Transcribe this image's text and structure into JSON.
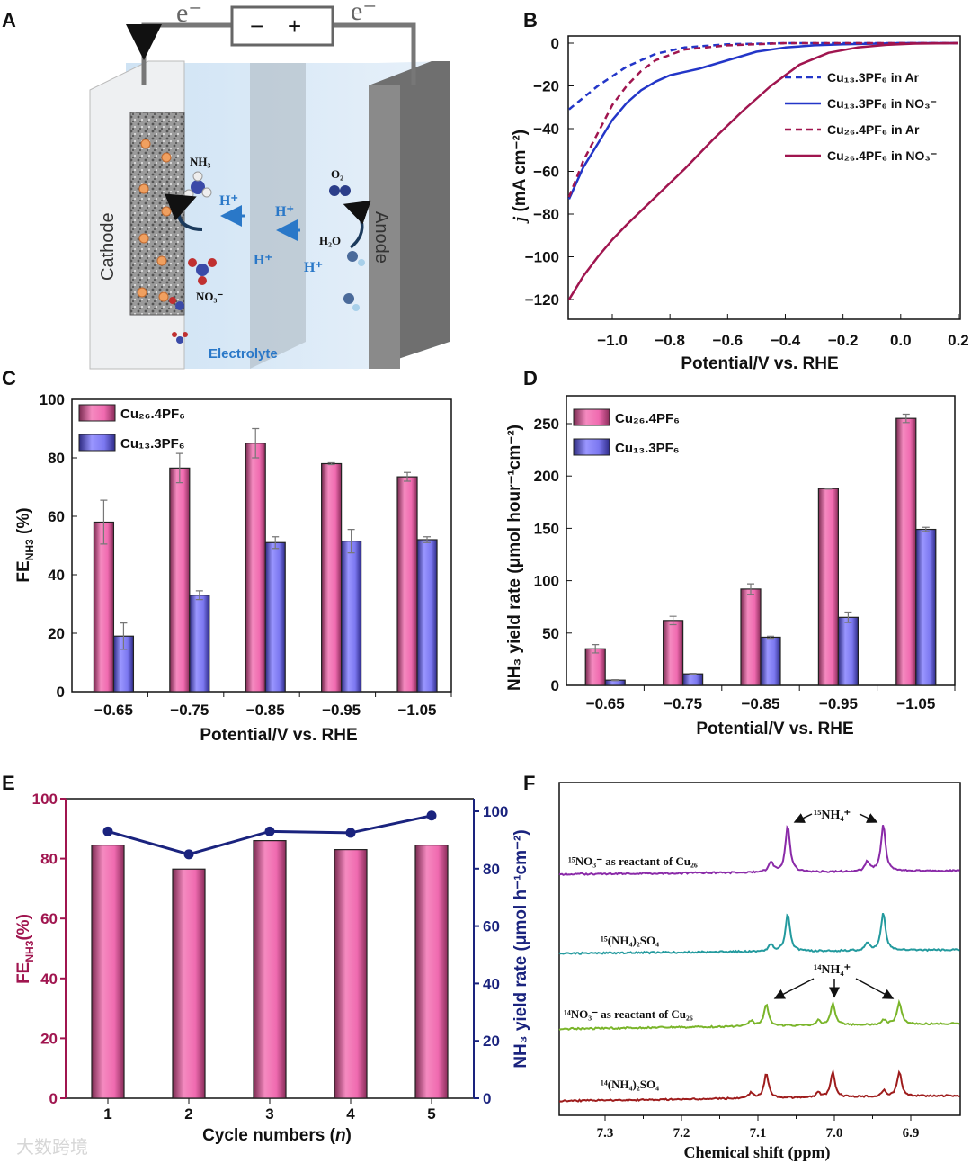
{
  "panels": {
    "A": "A",
    "B": "B",
    "C": "C",
    "D": "D",
    "E": "E",
    "F": "F"
  },
  "watermark": "大数跨境",
  "panel_a": {
    "electron_left": "e⁻",
    "electron_right": "e⁻",
    "battery_minus": "−",
    "battery_plus": "+",
    "cathode": "Cathode",
    "anode": "Anode",
    "nh3": "NH₃",
    "h_plus": "H⁺",
    "o2": "O₂",
    "h2o": "H₂O",
    "no3": "NO₃⁻",
    "electrolyte": "Electrolyte"
  },
  "chart_data": [
    {
      "panel": "B",
      "type": "line",
      "xlabel": "Potential/V vs. RHE",
      "ylabel_main": "j",
      "ylabel_rest": " (mA cm⁻²)",
      "xlim": [
        -1.15,
        0.2
      ],
      "ylim": [
        -129,
        3
      ],
      "xticks": [
        "−1.0",
        "−0.8",
        "−0.6",
        "−0.4",
        "−0.2",
        "0.0",
        "0.2"
      ],
      "xtick_values": [
        -1.0,
        -0.8,
        -0.6,
        -0.4,
        -0.2,
        0.0,
        0.2
      ],
      "yticks": [
        "0",
        "−20",
        "−40",
        "−60",
        "−80",
        "−100",
        "−120"
      ],
      "ytick_values": [
        0,
        -20,
        -40,
        -60,
        -80,
        -100,
        -120
      ],
      "legend_position": "top-right",
      "series": [
        {
          "name": "Cu₁₃.3PF₆ in Ar",
          "color": "#2336c8",
          "dash": true,
          "x": [
            -1.15,
            -1.05,
            -0.95,
            -0.85,
            -0.75,
            -0.6,
            -0.4,
            0.2
          ],
          "y": [
            -31,
            -20,
            -11,
            -5,
            -2,
            -0.5,
            0,
            0
          ]
        },
        {
          "name": "Cu₁₃.3PF₆ in NO₃⁻",
          "color": "#2336c8",
          "dash": false,
          "x": [
            -1.15,
            -1.1,
            -1.05,
            -1.0,
            -0.95,
            -0.9,
            -0.85,
            -0.8,
            -0.7,
            -0.6,
            -0.5,
            -0.4,
            -0.3,
            -0.2,
            0.0,
            0.2
          ],
          "y": [
            -73,
            -58,
            -47,
            -36,
            -28,
            -22,
            -18,
            -15,
            -12,
            -8,
            -4,
            -2,
            -1,
            -0.5,
            0,
            0
          ]
        },
        {
          "name": "Cu₂₆.4PF₆ in Ar",
          "color": "#a0154f",
          "dash": true,
          "x": [
            -1.15,
            -1.1,
            -1.05,
            -1.0,
            -0.95,
            -0.9,
            -0.85,
            -0.75,
            -0.6,
            -0.4,
            0.2
          ],
          "y": [
            -72,
            -55,
            -42,
            -29,
            -20,
            -13,
            -8,
            -3,
            -1,
            0,
            0
          ]
        },
        {
          "name": "Cu₂₆.4PF₆ in NO₃⁻",
          "color": "#a0154f",
          "dash": false,
          "x": [
            -1.15,
            -1.1,
            -1.05,
            -1.0,
            -0.95,
            -0.85,
            -0.75,
            -0.65,
            -0.55,
            -0.45,
            -0.35,
            -0.25,
            -0.15,
            -0.05,
            0.05,
            0.2
          ],
          "y": [
            -120,
            -109,
            -100,
            -92,
            -85,
            -72,
            -59,
            -45,
            -32,
            -20,
            -10,
            -4.5,
            -2,
            -0.8,
            -0.2,
            0
          ]
        }
      ]
    },
    {
      "panel": "C",
      "type": "bar",
      "xlabel": "Potential/V vs. RHE",
      "ylabel_main": "FE",
      "ylabel_sub": "NH3",
      "ylabel_rest": " (%)",
      "categories": [
        "−0.65",
        "−0.75",
        "−0.85",
        "−0.95",
        "−1.05"
      ],
      "ylim": [
        0,
        100
      ],
      "yticks": [
        0,
        20,
        40,
        60,
        80,
        100
      ],
      "legend_position": "top-left",
      "series": [
        {
          "name": "Cu₂₆.4PF₆",
          "color": "#f06bb0",
          "values": [
            58,
            76.5,
            85,
            78,
            73.5
          ],
          "errors": [
            7.5,
            5,
            5,
            0.3,
            1.5
          ]
        },
        {
          "name": "Cu₁₃.3PF₆",
          "color": "#7c78f0",
          "values": [
            19,
            33,
            51,
            51.5,
            52
          ],
          "errors": [
            4.5,
            1.5,
            2,
            4,
            1
          ]
        }
      ]
    },
    {
      "panel": "D",
      "type": "bar",
      "xlabel": "Potential/V vs. RHE",
      "ylabel": "NH₃ yield rate (μmol hour⁻¹cm⁻²)",
      "categories": [
        "−0.65",
        "−0.75",
        "−0.85",
        "−0.95",
        "−1.05"
      ],
      "ylim": [
        0,
        275
      ],
      "yticks": [
        0,
        50,
        100,
        150,
        200,
        250
      ],
      "legend_position": "top-left",
      "series": [
        {
          "name": "Cu₂₆.4PF₆",
          "color": "#f06bb0",
          "values": [
            35,
            62,
            92,
            188,
            255
          ],
          "errors": [
            4,
            4,
            5,
            0.5,
            4
          ]
        },
        {
          "name": "Cu₁₃.3PF₆",
          "color": "#7c78f0",
          "values": [
            5,
            11,
            46,
            65,
            149
          ],
          "errors": [
            0.5,
            0.5,
            1,
            5,
            2
          ]
        }
      ]
    },
    {
      "panel": "E",
      "type": "bar",
      "xlabel_main": "Cycle numbers (",
      "xlabel_italic": "n",
      "xlabel_end": ")",
      "ylabel_main": "FE",
      "ylabel_sub": "NH3",
      "ylabel_rest": "(%)",
      "ylabel_right": "NH₃ yield rate (μmol h⁻¹cm⁻²)",
      "categories": [
        "1",
        "2",
        "3",
        "4",
        "5"
      ],
      "ylim": [
        0,
        100
      ],
      "ylim_right": [
        0,
        105
      ],
      "yticks": [
        0,
        20,
        40,
        60,
        80,
        100
      ],
      "yticks_right": [
        0,
        20,
        40,
        60,
        80,
        100
      ],
      "left_color": "#a0154f",
      "right_color": "#1a237e",
      "bars": {
        "name": "FE NH3",
        "color": "#f06bb0",
        "values": [
          84.5,
          76.5,
          86,
          83,
          84.5
        ]
      },
      "line": {
        "name": "NH3 yield rate",
        "color": "#1a237e",
        "values": [
          93,
          85,
          93,
          92.5,
          98.5
        ]
      }
    },
    {
      "panel": "F",
      "type": "line",
      "xlabel": "Chemical shift (ppm)",
      "xlim": [
        7.36,
        6.835
      ],
      "xticks": [
        "7.3",
        "7.2",
        "7.1",
        "7.0",
        "6.9"
      ],
      "xtick_values": [
        7.3,
        7.2,
        7.1,
        7.0,
        6.9
      ],
      "annotations": {
        "n15": "¹⁵NH₄⁺",
        "n14": "¹⁴NH₄⁺"
      },
      "series": [
        {
          "name": "¹⁵NO₃⁻ as reactant of Cu₂₆",
          "color": "#8a2aa8",
          "peaks_ppm": [
            7.083,
            7.061,
            6.957,
            6.936
          ],
          "peak_heights": [
            0.22,
            1.0,
            0.2,
            1.0
          ]
        },
        {
          "name": "¹⁵(NH₄)₂SO₄",
          "color": "#239a9e",
          "peaks_ppm": [
            7.083,
            7.061,
            6.957,
            6.936
          ],
          "peak_heights": [
            0.15,
            0.85,
            0.15,
            0.85
          ]
        },
        {
          "name": "¹⁴NO₃⁻ as reactant of Cu₂₆",
          "color": "#7ab52a",
          "peaks_ppm": [
            7.109,
            7.089,
            7.021,
            7.002,
            6.935,
            6.915
          ],
          "peak_heights": [
            0.12,
            0.5,
            0.1,
            0.5,
            0.1,
            0.5
          ]
        },
        {
          "name": "¹⁴(NH₄)₂SO₄",
          "color": "#9e1c1c",
          "peaks_ppm": [
            7.109,
            7.089,
            7.021,
            7.002,
            6.935,
            6.915
          ],
          "peak_heights": [
            0.12,
            0.55,
            0.1,
            0.55,
            0.12,
            0.55
          ]
        }
      ]
    }
  ]
}
